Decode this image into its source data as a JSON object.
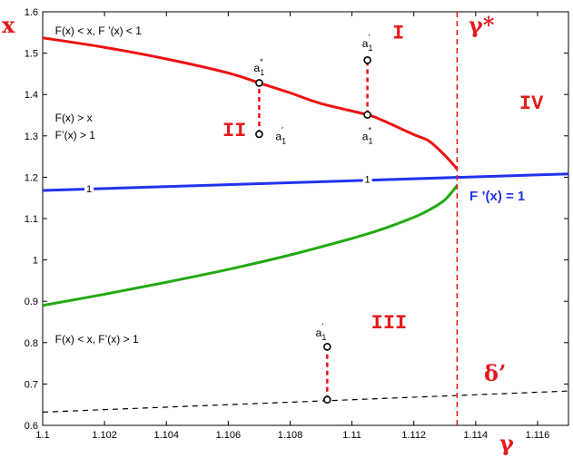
{
  "chart_data": {
    "type": "line",
    "xlabel": "γ",
    "ylabel": "x",
    "xlim": [
      1.1,
      1.117
    ],
    "ylim": [
      0.6,
      1.6
    ],
    "xticks": [
      "1.1",
      "1.102",
      "1.104",
      "1.106",
      "1.108",
      "1.11",
      "1.112",
      "1.114",
      "1.116"
    ],
    "yticks": [
      "0.6",
      "0.7",
      "0.8",
      "0.9",
      "1",
      "1.1",
      "1.2",
      "1.3",
      "1.4",
      "1.5",
      "1.6"
    ],
    "gamma_star": 1.1134,
    "gamma_star_label": "γ*",
    "delta_label": "δ’",
    "series": [
      {
        "key": "upper",
        "color": "#ee1111",
        "points": [
          [
            1.1,
            1.537
          ],
          [
            1.102,
            1.514
          ],
          [
            1.104,
            1.486
          ],
          [
            1.106,
            1.452
          ],
          [
            1.107,
            1.428
          ],
          [
            1.108,
            1.404
          ],
          [
            1.109,
            1.378
          ],
          [
            1.1105,
            1.351
          ],
          [
            1.111,
            1.337
          ],
          [
            1.112,
            1.303
          ],
          [
            1.1125,
            1.287
          ],
          [
            1.113,
            1.253
          ],
          [
            1.1134,
            1.22
          ]
        ]
      },
      {
        "key": "lower",
        "color": "#22aa11",
        "points": [
          [
            1.1,
            0.89
          ],
          [
            1.102,
            0.917
          ],
          [
            1.104,
            0.946
          ],
          [
            1.106,
            0.977
          ],
          [
            1.108,
            1.012
          ],
          [
            1.11,
            1.052
          ],
          [
            1.111,
            1.075
          ],
          [
            1.112,
            1.103
          ],
          [
            1.1125,
            1.121
          ],
          [
            1.113,
            1.145
          ],
          [
            1.1134,
            1.18
          ]
        ]
      },
      {
        "key": "fprime",
        "color": "#2233ee",
        "points": [
          [
            1.1,
            1.168
          ],
          [
            1.117,
            1.208
          ]
        ]
      },
      {
        "key": "delta",
        "color": "#000000",
        "dashed": true,
        "points": [
          [
            1.1,
            0.632
          ],
          [
            1.117,
            0.683
          ]
        ]
      }
    ],
    "dashed_segments": [
      {
        "x": 1.107,
        "y0": 1.304,
        "y1": 1.428
      },
      {
        "x": 1.1105,
        "y0": 1.351,
        "y1": 1.483
      },
      {
        "x": 1.1092,
        "y0": 0.662,
        "y1": 0.79
      }
    ],
    "markers": [
      {
        "x": 1.107,
        "y": 1.428
      },
      {
        "x": 1.107,
        "y": 1.304
      },
      {
        "x": 1.1105,
        "y": 1.351
      },
      {
        "x": 1.1105,
        "y": 1.483
      },
      {
        "x": 1.1092,
        "y": 0.79
      },
      {
        "x": 1.1092,
        "y": 0.662
      }
    ],
    "contour_labels": [
      {
        "x": 1.1015,
        "y": 1.172,
        "text": "1"
      },
      {
        "x": 1.1105,
        "y": 1.195,
        "text": "1"
      }
    ],
    "annotations": [
      {
        "x": 1.107,
        "y": 1.455,
        "text": "a",
        "sub": "1",
        "sup": "*"
      },
      {
        "x": 1.1077,
        "y": 1.29,
        "text": "a",
        "sub": "1",
        "sup": "′"
      },
      {
        "x": 1.1105,
        "y": 1.515,
        "text": "a",
        "sub": "1",
        "sup": "′"
      },
      {
        "x": 1.1105,
        "y": 1.29,
        "text": "a",
        "sub": "1",
        "sup": "*"
      },
      {
        "x": 1.109,
        "y": 0.815,
        "text": "a",
        "sub": "1",
        "sup": "′"
      }
    ],
    "region_labels": [
      {
        "x": 1.1115,
        "y": 1.535,
        "text": "I"
      },
      {
        "x": 1.1062,
        "y": 1.3,
        "text": "II"
      },
      {
        "x": 1.1112,
        "y": 0.835,
        "text": "III"
      },
      {
        "x": 1.1158,
        "y": 1.365,
        "text": "IV"
      }
    ],
    "notes": [
      {
        "x": 1.1004,
        "y": 1.545,
        "text": "F(x) < x,   F ’(x) < 1"
      },
      {
        "x": 1.1004,
        "y": 1.335,
        "text": "F(x) > x"
      },
      {
        "x": 1.1004,
        "y": 1.293,
        "text": "F’(x) > 1"
      },
      {
        "x": 1.1004,
        "y": 0.8,
        "text": "F(x) < x,   F’(x) > 1"
      }
    ],
    "fprime_label": "F ’(x) = 1"
  }
}
